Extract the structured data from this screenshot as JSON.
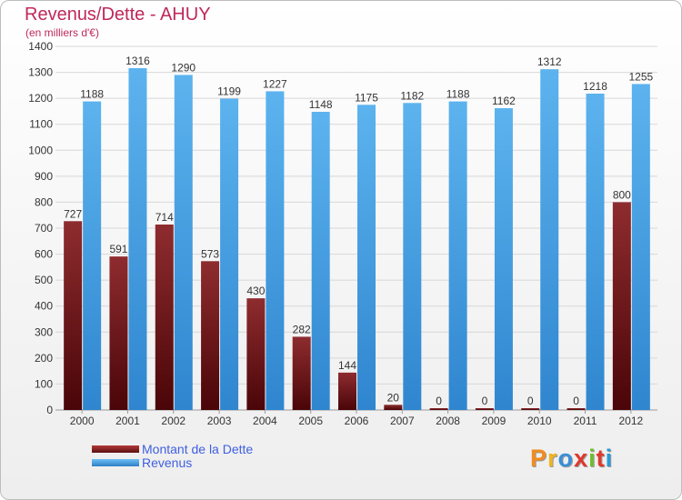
{
  "chart_data": {
    "type": "bar",
    "title": "Revenus/Dette - AHUY",
    "subtitle": "(en milliers d'€)",
    "categories": [
      "2000",
      "2001",
      "2002",
      "2003",
      "2004",
      "2005",
      "2006",
      "2007",
      "2008",
      "2009",
      "2010",
      "2011",
      "2012"
    ],
    "series": [
      {
        "name": "Montant de la Dette",
        "color": "#7a1f22",
        "values": [
          727,
          591,
          714,
          573,
          430,
          282,
          144,
          20,
          0,
          0,
          0,
          0,
          800
        ]
      },
      {
        "name": "Revenus",
        "color": "#4aa3e6",
        "values": [
          1188,
          1316,
          1290,
          1199,
          1227,
          1148,
          1175,
          1182,
          1188,
          1162,
          1312,
          1218,
          1255
        ]
      }
    ],
    "ylim": [
      0,
      1400
    ],
    "yticks": [
      0,
      100,
      200,
      300,
      400,
      500,
      600,
      700,
      800,
      900,
      1000,
      1100,
      1200,
      1300,
      1400
    ],
    "grid": true,
    "legend_position": "bottom-left"
  },
  "logo": {
    "letters": [
      "P",
      "r",
      "o",
      "x",
      "i",
      "t",
      "i"
    ],
    "colors": [
      "#f08c1e",
      "#f0b41e",
      "#3a8fd8",
      "#e0382c",
      "#6fbe2c",
      "#e0382c",
      "#2a9ad8"
    ]
  }
}
